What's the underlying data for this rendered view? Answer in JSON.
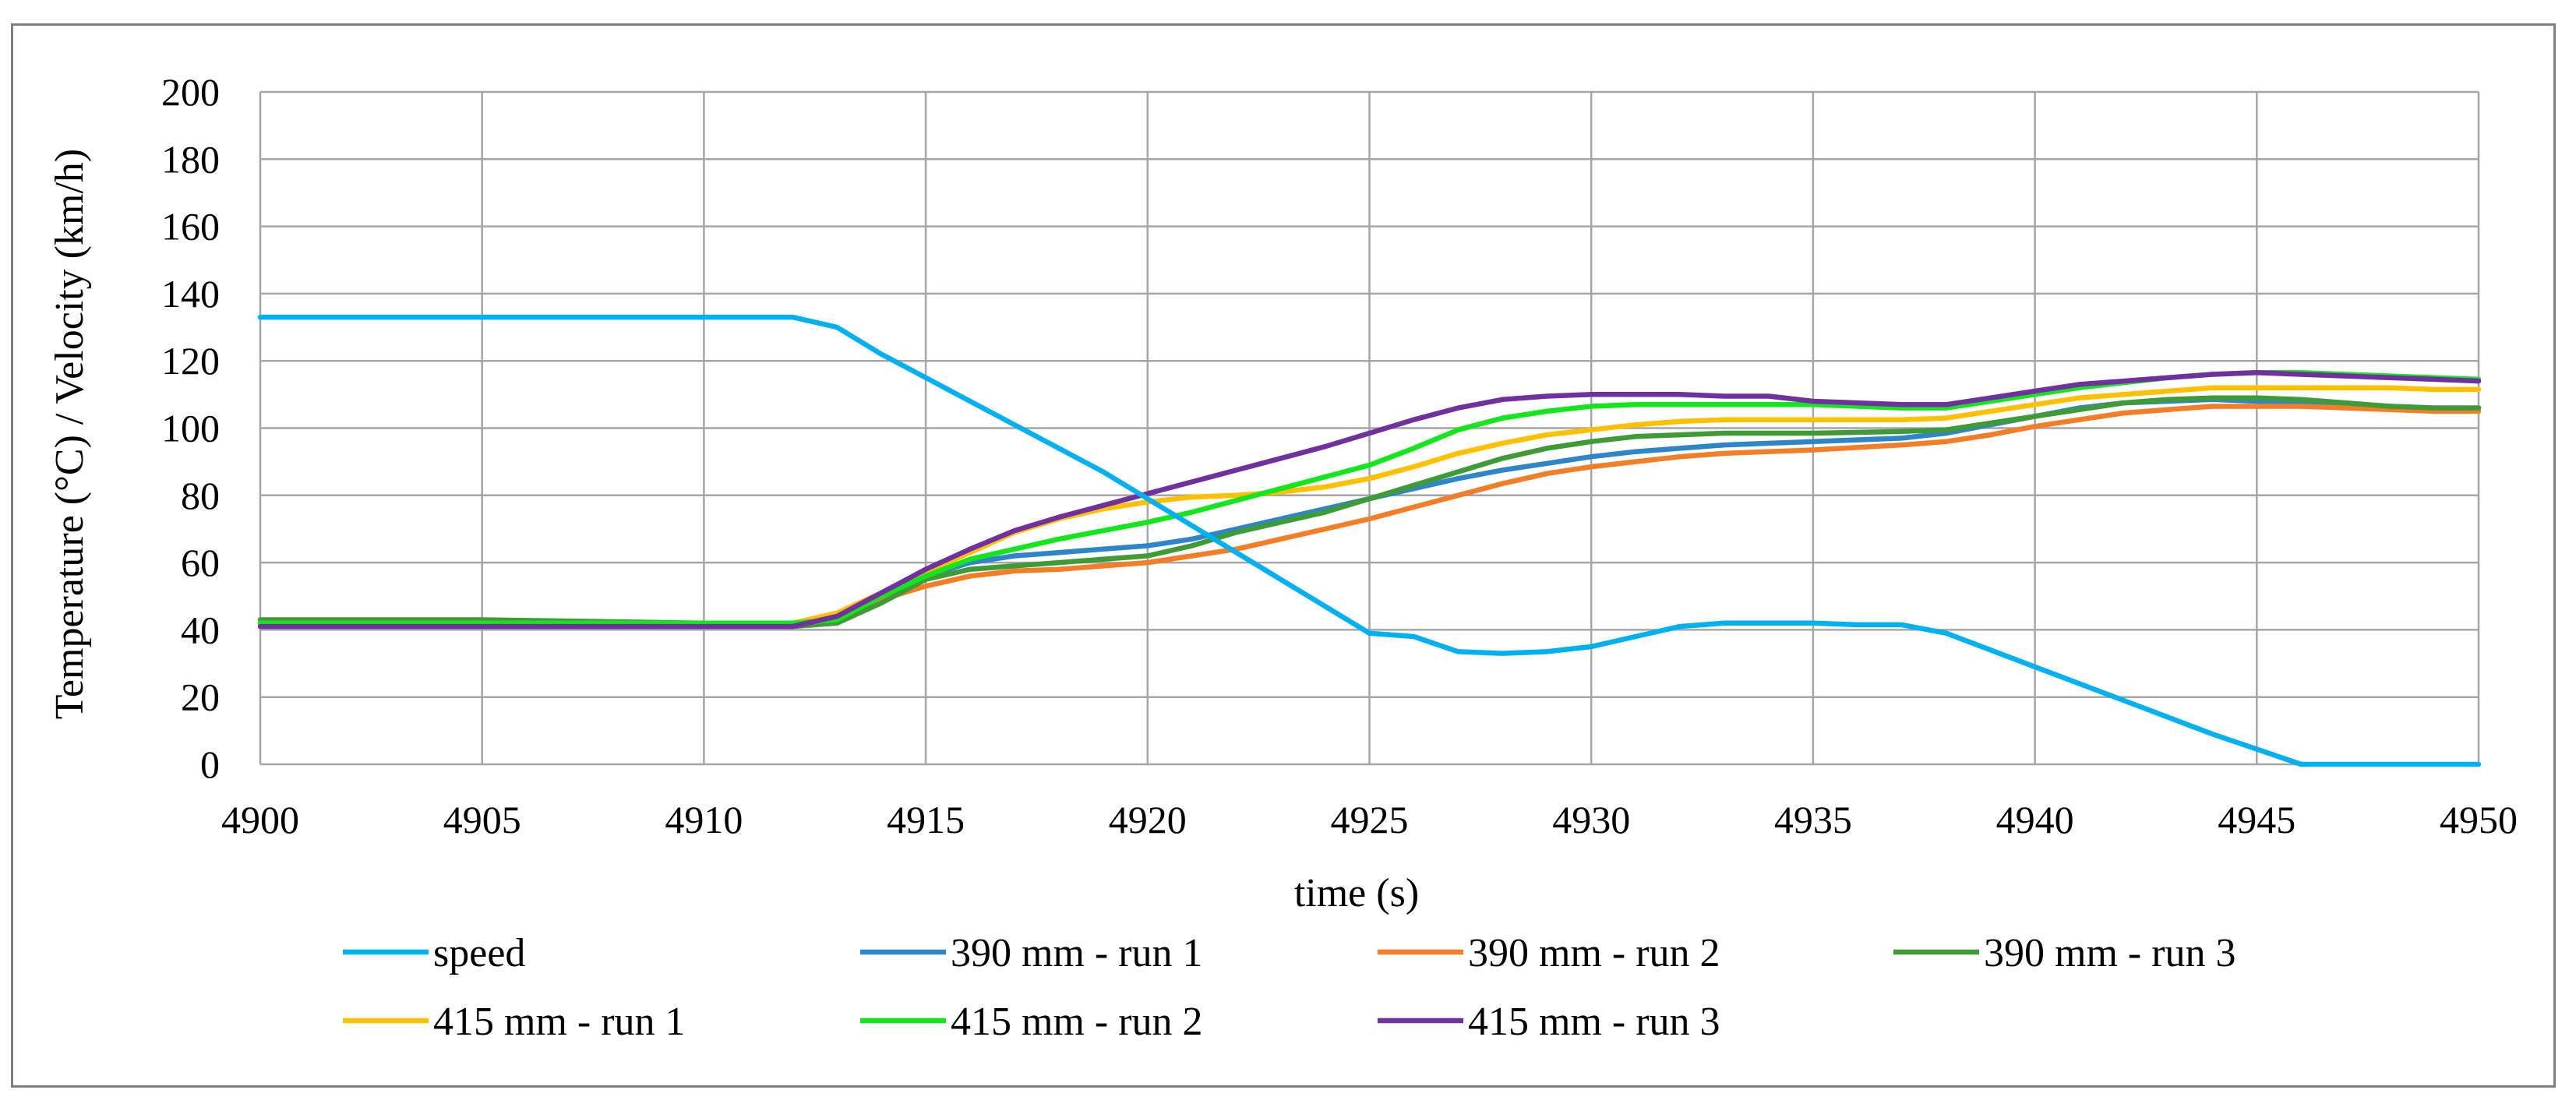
{
  "chart_data": {
    "type": "line",
    "title": "",
    "xlabel": "time (s)",
    "ylabel": "Temperature (°C) / Velocity (km/h)",
    "xlim": [
      4900,
      4950
    ],
    "ylim": [
      0,
      200
    ],
    "x_ticks": [
      "4900",
      "4905",
      "4910",
      "4915",
      "4920",
      "4925",
      "4930",
      "4935",
      "4940",
      "4945",
      "4950"
    ],
    "y_ticks": [
      "0",
      "20",
      "40",
      "60",
      "80",
      "100",
      "120",
      "140",
      "160",
      "180",
      "200"
    ],
    "grid": true,
    "legend_position": "bottom",
    "series": [
      {
        "name": "speed",
        "color": "#00b0f0",
        "points": [
          [
            4900,
            133
          ],
          [
            4912,
            133
          ],
          [
            4913,
            130
          ],
          [
            4914,
            122
          ],
          [
            4915,
            115
          ],
          [
            4916,
            108
          ],
          [
            4917,
            101
          ],
          [
            4918,
            94
          ],
          [
            4919,
            87
          ],
          [
            4920,
            79
          ],
          [
            4921,
            71
          ],
          [
            4922,
            63
          ],
          [
            4923,
            55
          ],
          [
            4924,
            47
          ],
          [
            4925,
            39
          ],
          [
            4926,
            38
          ],
          [
            4927,
            33.5
          ],
          [
            4928,
            33
          ],
          [
            4929,
            33.5
          ],
          [
            4930,
            35
          ],
          [
            4931,
            38
          ],
          [
            4932,
            41
          ],
          [
            4933,
            42
          ],
          [
            4935,
            42
          ],
          [
            4936,
            41.5
          ],
          [
            4937,
            41.5
          ],
          [
            4938,
            39
          ],
          [
            4939,
            34
          ],
          [
            4940,
            29
          ],
          [
            4941,
            24
          ],
          [
            4942,
            19
          ],
          [
            4943,
            14
          ],
          [
            4944,
            9
          ],
          [
            4945,
            4.5
          ],
          [
            4946,
            0
          ],
          [
            4950,
            0
          ]
        ]
      },
      {
        "name": "390 mm - run 1",
        "color": "#2e86c8",
        "points": [
          [
            4900,
            42
          ],
          [
            4905,
            42
          ],
          [
            4910,
            42
          ],
          [
            4912,
            41.5
          ],
          [
            4913,
            43
          ],
          [
            4914,
            50
          ],
          [
            4915,
            56
          ],
          [
            4916,
            60
          ],
          [
            4917,
            62
          ],
          [
            4918,
            63
          ],
          [
            4919,
            64
          ],
          [
            4920,
            65
          ],
          [
            4921,
            67
          ],
          [
            4922,
            70
          ],
          [
            4923,
            73
          ],
          [
            4924,
            76
          ],
          [
            4925,
            79
          ],
          [
            4926,
            82
          ],
          [
            4927,
            85
          ],
          [
            4928,
            87.5
          ],
          [
            4929,
            89.5
          ],
          [
            4930,
            91.5
          ],
          [
            4931,
            93
          ],
          [
            4932,
            94
          ],
          [
            4933,
            95
          ],
          [
            4935,
            96
          ],
          [
            4937,
            97
          ],
          [
            4938,
            98.5
          ],
          [
            4939,
            101
          ],
          [
            4940,
            103.5
          ],
          [
            4941,
            106
          ],
          [
            4942,
            107.5
          ],
          [
            4943,
            108
          ],
          [
            4944,
            108.5
          ],
          [
            4945,
            108
          ],
          [
            4946,
            107.5
          ],
          [
            4947,
            107
          ],
          [
            4948,
            106.5
          ],
          [
            4949,
            106
          ],
          [
            4950,
            106
          ]
        ]
      },
      {
        "name": "390 mm - run 2",
        "color": "#f47d28",
        "points": [
          [
            4900,
            42
          ],
          [
            4905,
            42
          ],
          [
            4910,
            42
          ],
          [
            4912,
            42
          ],
          [
            4913,
            44
          ],
          [
            4914,
            49
          ],
          [
            4915,
            53
          ],
          [
            4916,
            56
          ],
          [
            4917,
            57.5
          ],
          [
            4918,
            58
          ],
          [
            4919,
            59
          ],
          [
            4920,
            60
          ],
          [
            4921,
            62
          ],
          [
            4922,
            64
          ],
          [
            4923,
            67
          ],
          [
            4924,
            70
          ],
          [
            4925,
            73
          ],
          [
            4926,
            76.5
          ],
          [
            4927,
            80
          ],
          [
            4928,
            83.5
          ],
          [
            4929,
            86.5
          ],
          [
            4930,
            88.5
          ],
          [
            4931,
            90
          ],
          [
            4932,
            91.5
          ],
          [
            4933,
            92.5
          ],
          [
            4935,
            93.5
          ],
          [
            4937,
            95
          ],
          [
            4938,
            96
          ],
          [
            4939,
            98
          ],
          [
            4940,
            100.5
          ],
          [
            4941,
            102.5
          ],
          [
            4942,
            104.5
          ],
          [
            4943,
            105.5
          ],
          [
            4944,
            106.5
          ],
          [
            4945,
            106.5
          ],
          [
            4946,
            106.5
          ],
          [
            4947,
            106
          ],
          [
            4948,
            105.5
          ],
          [
            4949,
            105
          ],
          [
            4950,
            105
          ]
        ]
      },
      {
        "name": "390 mm - run 3",
        "color": "#3f9b35",
        "points": [
          [
            4900,
            43
          ],
          [
            4905,
            43
          ],
          [
            4910,
            42
          ],
          [
            4912,
            41
          ],
          [
            4913,
            42
          ],
          [
            4914,
            48
          ],
          [
            4915,
            55
          ],
          [
            4916,
            58
          ],
          [
            4917,
            59
          ],
          [
            4918,
            60
          ],
          [
            4919,
            61
          ],
          [
            4920,
            62
          ],
          [
            4921,
            65
          ],
          [
            4922,
            69
          ],
          [
            4923,
            72
          ],
          [
            4924,
            75
          ],
          [
            4925,
            79
          ],
          [
            4926,
            83
          ],
          [
            4927,
            87
          ],
          [
            4928,
            91
          ],
          [
            4929,
            94
          ],
          [
            4930,
            96
          ],
          [
            4931,
            97.5
          ],
          [
            4932,
            98
          ],
          [
            4933,
            98.5
          ],
          [
            4935,
            98.5
          ],
          [
            4937,
            99
          ],
          [
            4938,
            99.5
          ],
          [
            4939,
            101.5
          ],
          [
            4940,
            103.5
          ],
          [
            4941,
            105.5
          ],
          [
            4942,
            107.5
          ],
          [
            4943,
            108.5
          ],
          [
            4944,
            109
          ],
          [
            4945,
            109
          ],
          [
            4946,
            108.5
          ],
          [
            4947,
            107.5
          ],
          [
            4948,
            106.5
          ],
          [
            4949,
            106
          ],
          [
            4950,
            106
          ]
        ]
      },
      {
        "name": "415 mm - run 1",
        "color": "#ffc000",
        "points": [
          [
            4900,
            42
          ],
          [
            4905,
            42
          ],
          [
            4910,
            42
          ],
          [
            4912,
            42
          ],
          [
            4913,
            45
          ],
          [
            4914,
            51
          ],
          [
            4915,
            57
          ],
          [
            4916,
            63
          ],
          [
            4917,
            69
          ],
          [
            4918,
            73
          ],
          [
            4919,
            76
          ],
          [
            4920,
            78
          ],
          [
            4921,
            79.5
          ],
          [
            4922,
            80
          ],
          [
            4923,
            81
          ],
          [
            4924,
            82.5
          ],
          [
            4925,
            85
          ],
          [
            4926,
            88.5
          ],
          [
            4927,
            92.5
          ],
          [
            4928,
            95.5
          ],
          [
            4929,
            98
          ],
          [
            4930,
            99.5
          ],
          [
            4931,
            101
          ],
          [
            4932,
            102
          ],
          [
            4933,
            102.5
          ],
          [
            4935,
            102.5
          ],
          [
            4937,
            102.5
          ],
          [
            4938,
            103
          ],
          [
            4939,
            105
          ],
          [
            4940,
            107
          ],
          [
            4941,
            109
          ],
          [
            4942,
            110
          ],
          [
            4943,
            111
          ],
          [
            4944,
            112
          ],
          [
            4945,
            112
          ],
          [
            4946,
            112
          ],
          [
            4947,
            112
          ],
          [
            4948,
            112
          ],
          [
            4949,
            111.5
          ],
          [
            4950,
            111.5
          ]
        ]
      },
      {
        "name": "415 mm - run 2",
        "color": "#14e61e",
        "points": [
          [
            4900,
            42
          ],
          [
            4905,
            42
          ],
          [
            4910,
            42
          ],
          [
            4912,
            42
          ],
          [
            4913,
            43
          ],
          [
            4914,
            50
          ],
          [
            4915,
            56
          ],
          [
            4916,
            61
          ],
          [
            4917,
            64
          ],
          [
            4918,
            67
          ],
          [
            4919,
            69.5
          ],
          [
            4920,
            72
          ],
          [
            4921,
            75
          ],
          [
            4922,
            78.5
          ],
          [
            4923,
            82
          ],
          [
            4924,
            85.5
          ],
          [
            4925,
            89
          ],
          [
            4926,
            94
          ],
          [
            4927,
            99.5
          ],
          [
            4928,
            103
          ],
          [
            4929,
            105
          ],
          [
            4930,
            106.5
          ],
          [
            4931,
            107
          ],
          [
            4932,
            107
          ],
          [
            4933,
            107
          ],
          [
            4935,
            107
          ],
          [
            4936,
            106.5
          ],
          [
            4937,
            106
          ],
          [
            4938,
            106
          ],
          [
            4939,
            108
          ],
          [
            4940,
            110
          ],
          [
            4941,
            112
          ],
          [
            4942,
            113.5
          ],
          [
            4943,
            115
          ],
          [
            4944,
            116
          ],
          [
            4945,
            116.5
          ],
          [
            4946,
            116.5
          ],
          [
            4947,
            116
          ],
          [
            4948,
            115.5
          ],
          [
            4949,
            115
          ],
          [
            4950,
            114.5
          ]
        ]
      },
      {
        "name": "415 mm - run 3",
        "color": "#7030a0",
        "points": [
          [
            4900,
            41
          ],
          [
            4905,
            41
          ],
          [
            4910,
            41
          ],
          [
            4912,
            41
          ],
          [
            4913,
            44
          ],
          [
            4914,
            51
          ],
          [
            4915,
            58
          ],
          [
            4916,
            64
          ],
          [
            4917,
            69.5
          ],
          [
            4918,
            73.5
          ],
          [
            4919,
            77
          ],
          [
            4920,
            80.5
          ],
          [
            4921,
            84
          ],
          [
            4922,
            87.5
          ],
          [
            4923,
            91
          ],
          [
            4924,
            94.5
          ],
          [
            4925,
            98.5
          ],
          [
            4926,
            102.5
          ],
          [
            4927,
            106
          ],
          [
            4928,
            108.5
          ],
          [
            4929,
            109.5
          ],
          [
            4930,
            110
          ],
          [
            4931,
            110
          ],
          [
            4932,
            110
          ],
          [
            4933,
            109.5
          ],
          [
            4934,
            109.5
          ],
          [
            4935,
            108
          ],
          [
            4936,
            107.5
          ],
          [
            4937,
            107
          ],
          [
            4938,
            107
          ],
          [
            4939,
            109
          ],
          [
            4940,
            111
          ],
          [
            4941,
            113
          ],
          [
            4942,
            114
          ],
          [
            4943,
            115
          ],
          [
            4944,
            116
          ],
          [
            4945,
            116.5
          ],
          [
            4946,
            116
          ],
          [
            4947,
            115.5
          ],
          [
            4948,
            115
          ],
          [
            4949,
            114.5
          ],
          [
            4950,
            114
          ]
        ]
      }
    ]
  }
}
